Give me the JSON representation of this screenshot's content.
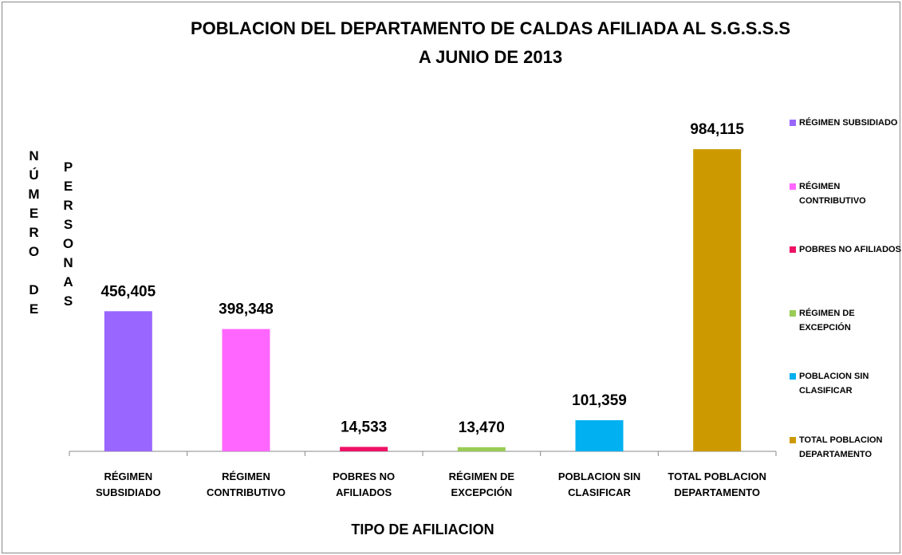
{
  "chart_data": {
    "type": "bar",
    "title": [
      "POBLACION DEL DEPARTAMENTO DE CALDAS AFILIADA AL S.G.S.S.S",
      "A JUNIO DE 2013"
    ],
    "xlabel": "TIPO DE AFILIACION",
    "ylabel": [
      "NÚMERO DE",
      "PERSONAS"
    ],
    "categories": [
      "RÉGIMEN SUBSIDIADO",
      "RÉGIMEN CONTRIBUTIVO",
      "POBRES NO AFILIADOS",
      "RÉGIMEN DE EXCEPCIÓN",
      "POBLACION SIN CLASIFICAR",
      "TOTAL POBLACION DEPARTAMENTO"
    ],
    "values": [
      456405,
      398348,
      14533,
      13470,
      101359,
      984115
    ],
    "value_labels": [
      "456,405",
      "398,348",
      "14,533",
      "13,470",
      "101,359",
      "984,115"
    ],
    "colors": [
      "#9966ff",
      "#ff66ff",
      "#ee1166",
      "#99cc55",
      "#00b0f0",
      "#cc9900"
    ],
    "ylim": [
      0,
      1000000
    ],
    "legend": "right"
  }
}
